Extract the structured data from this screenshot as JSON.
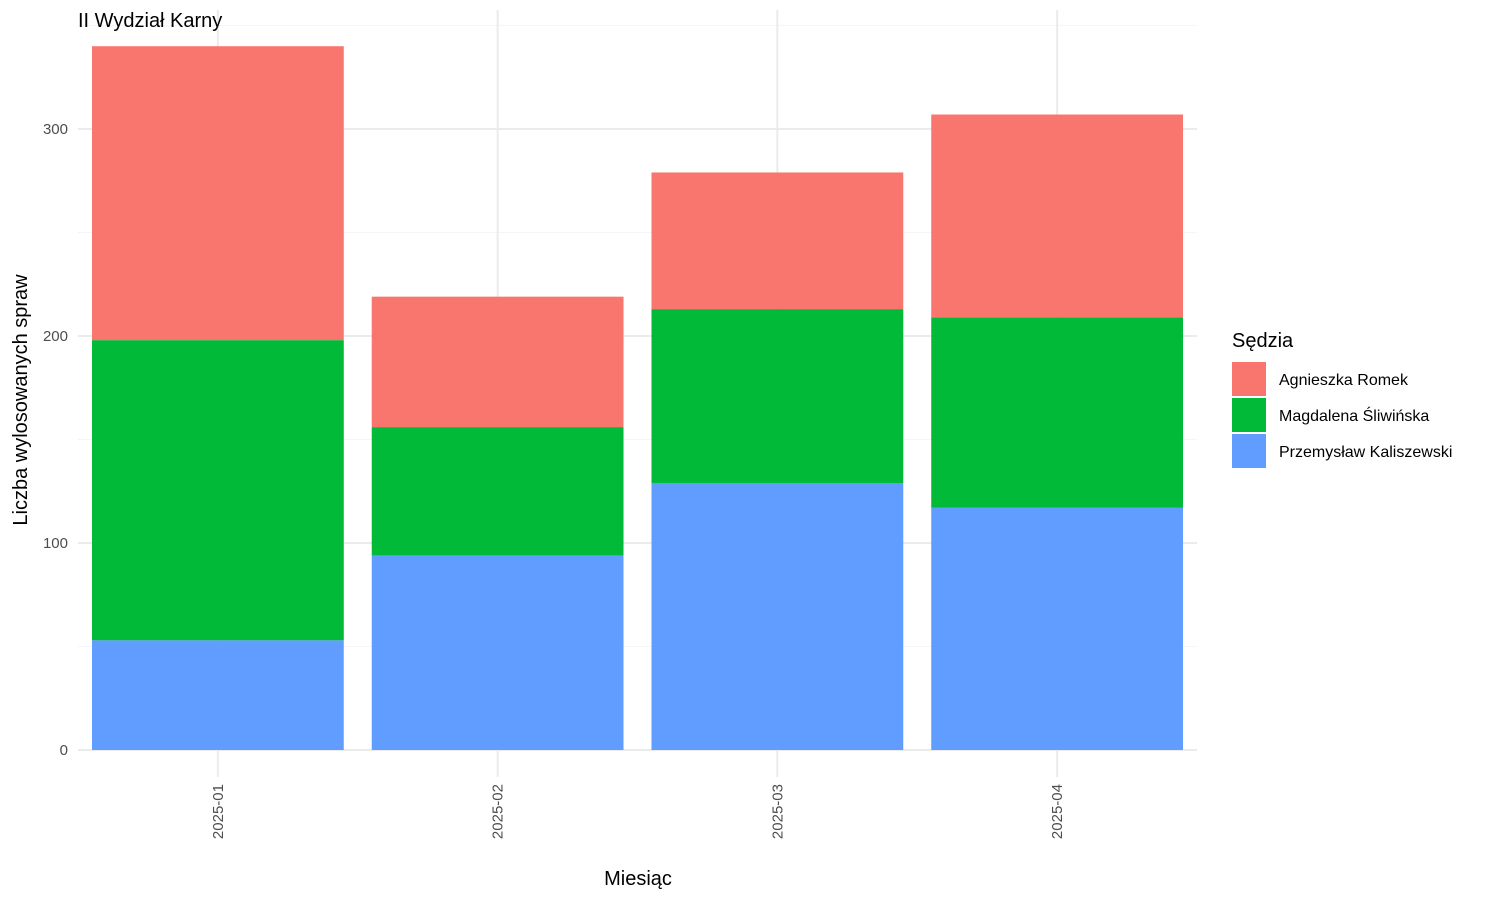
{
  "chart_data": {
    "type": "bar",
    "stacked": true,
    "title": "II Wydział Karny",
    "xlabel": "Miesiąc",
    "ylabel": "Liczba wylosowanych spraw",
    "categories": [
      "2025-01",
      "2025-02",
      "2025-03",
      "2025-04"
    ],
    "ylim": [
      0,
      350
    ],
    "yticks": [
      0,
      100,
      200,
      300
    ],
    "grid": true,
    "legend": {
      "title": "Sędzia",
      "position": "right"
    },
    "series": [
      {
        "name": "Przemysław Kaliszewski",
        "color": "#619CFF",
        "values": [
          53,
          94,
          129,
          117
        ]
      },
      {
        "name": "Magdalena Śliwińska",
        "color": "#00BA38",
        "values": [
          145,
          62,
          84,
          92
        ]
      },
      {
        "name": "Agnieszka Romek",
        "color": "#F8766D",
        "values": [
          142,
          63,
          66,
          98
        ]
      }
    ],
    "legend_order": [
      "Agnieszka Romek",
      "Magdalena Śliwińska",
      "Przemysław Kaliszewski"
    ]
  }
}
